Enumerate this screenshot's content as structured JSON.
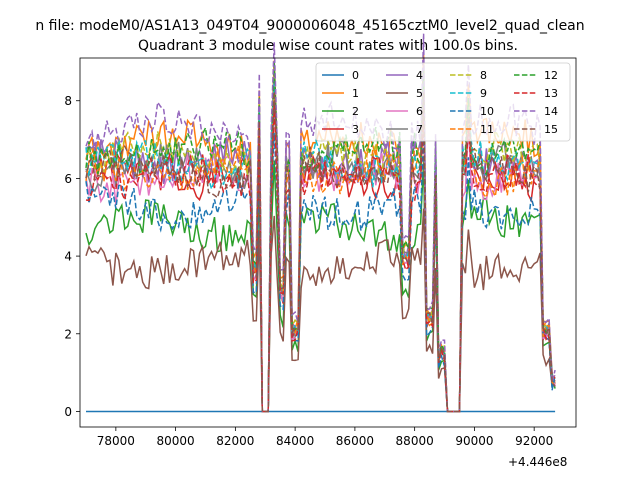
{
  "figure": {
    "suptitle": "n file: modeM0/AS1A13_049T04_9000006048_45165cztM0_level2_quad_clean",
    "title": "Quadrant 3 module wise count rates with 100.0s bins.",
    "offset_label": "+4.446e8"
  },
  "chart_data": {
    "type": "line",
    "title": "Quadrant 3 module wise count rates with 100.0s bins.",
    "xlabel": "",
    "ylabel": "",
    "x_offset": 444600000,
    "xlim": [
      76800,
      93400
    ],
    "ylim": [
      -0.4,
      9.1
    ],
    "x_ticks": [
      78000,
      80000,
      82000,
      84000,
      86000,
      88000,
      90000,
      92000
    ],
    "x_tick_labels": [
      "78000",
      "80000",
      "82000",
      "84000",
      "86000",
      "88000",
      "90000",
      "92000"
    ],
    "y_ticks": [
      0,
      2,
      4,
      6,
      8
    ],
    "y_tick_labels": [
      "0",
      "2",
      "4",
      "6",
      "8"
    ],
    "grid": false,
    "legend_position": "top-right",
    "legend_columns": 4,
    "x_range": [
      77000,
      92700
    ],
    "bin_seconds": 100,
    "gaps": [
      {
        "start": 82850,
        "end": 83150,
        "value": 0
      },
      {
        "start": 89100,
        "end": 89500,
        "value": 0
      }
    ],
    "dips": [
      {
        "x": 82650,
        "factor": 0.55
      },
      {
        "x": 83550,
        "factor": 0.45
      },
      {
        "x": 84000,
        "factor": 0.3
      },
      {
        "x": 87700,
        "factor": 0.6
      },
      {
        "x": 88500,
        "factor": 0.35
      },
      {
        "x": 88900,
        "factor": 0.2
      },
      {
        "x": 92400,
        "factor": 0.3
      },
      {
        "x": 92700,
        "factor": 0.1
      }
    ],
    "peaks": [
      {
        "x": 82800,
        "factor": 1.18
      },
      {
        "x": 83300,
        "factor": 1.3
      },
      {
        "x": 88300,
        "factor": 1.3
      },
      {
        "x": 89800,
        "factor": 1.2
      }
    ],
    "series": [
      {
        "name": "0",
        "color": "#1f77b4",
        "dash": "solid",
        "level": 0.0
      },
      {
        "name": "1",
        "color": "#ff7f0e",
        "dash": "solid",
        "level": 6.9
      },
      {
        "name": "2",
        "color": "#2ca02c",
        "dash": "solid",
        "level": 4.8
      },
      {
        "name": "3",
        "color": "#d62728",
        "dash": "solid",
        "level": 6.1
      },
      {
        "name": "4",
        "color": "#9467bd",
        "dash": "solid",
        "level": 6.5
      },
      {
        "name": "5",
        "color": "#8c564b",
        "dash": "solid",
        "level": 3.8
      },
      {
        "name": "6",
        "color": "#e377c2",
        "dash": "solid",
        "level": 6.0
      },
      {
        "name": "7",
        "color": "#7f7f7f",
        "dash": "solid",
        "level": 6.3
      },
      {
        "name": "8",
        "color": "#bcbd22",
        "dash": "dashed",
        "level": 6.6
      },
      {
        "name": "9",
        "color": "#17becf",
        "dash": "dashed",
        "level": 6.4
      },
      {
        "name": "10",
        "color": "#1f77b4",
        "dash": "dashed",
        "level": 5.3
      },
      {
        "name": "11",
        "color": "#ff7f0e",
        "dash": "dashed",
        "level": 6.2
      },
      {
        "name": "12",
        "color": "#2ca02c",
        "dash": "dashed",
        "level": 6.7
      },
      {
        "name": "13",
        "color": "#d62728",
        "dash": "dashed",
        "level": 6.0
      },
      {
        "name": "14",
        "color": "#9467bd",
        "dash": "dashed",
        "level": 7.3
      },
      {
        "name": "15",
        "color": "#8c564b",
        "dash": "dashed",
        "level": 6.2
      }
    ]
  }
}
